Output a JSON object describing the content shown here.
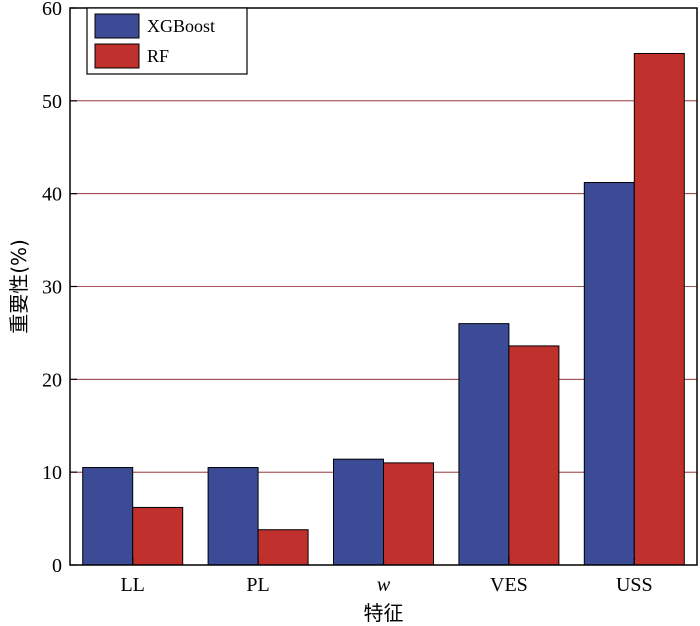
{
  "chart_data": {
    "type": "bar",
    "title": "",
    "xlabel": "特征",
    "ylabel": "重要性(%)",
    "categories": [
      "LL",
      "PL",
      "w",
      "VES",
      "USS"
    ],
    "category_italic": [
      false,
      false,
      true,
      false,
      false
    ],
    "series": [
      {
        "name": "XGBoost",
        "color": "#3b4b96",
        "values": [
          10.5,
          10.5,
          11.4,
          26.0,
          41.2
        ]
      },
      {
        "name": "RF",
        "color": "#c0312e",
        "values": [
          6.2,
          3.8,
          11.0,
          23.6,
          55.1
        ]
      }
    ],
    "ylim": [
      0,
      60
    ],
    "yticks": [
      "0",
      "10",
      "20",
      "30",
      "40",
      "50",
      "60"
    ],
    "grid": true,
    "grid_color": "#8b1a1a",
    "legend_position": "top-left"
  }
}
